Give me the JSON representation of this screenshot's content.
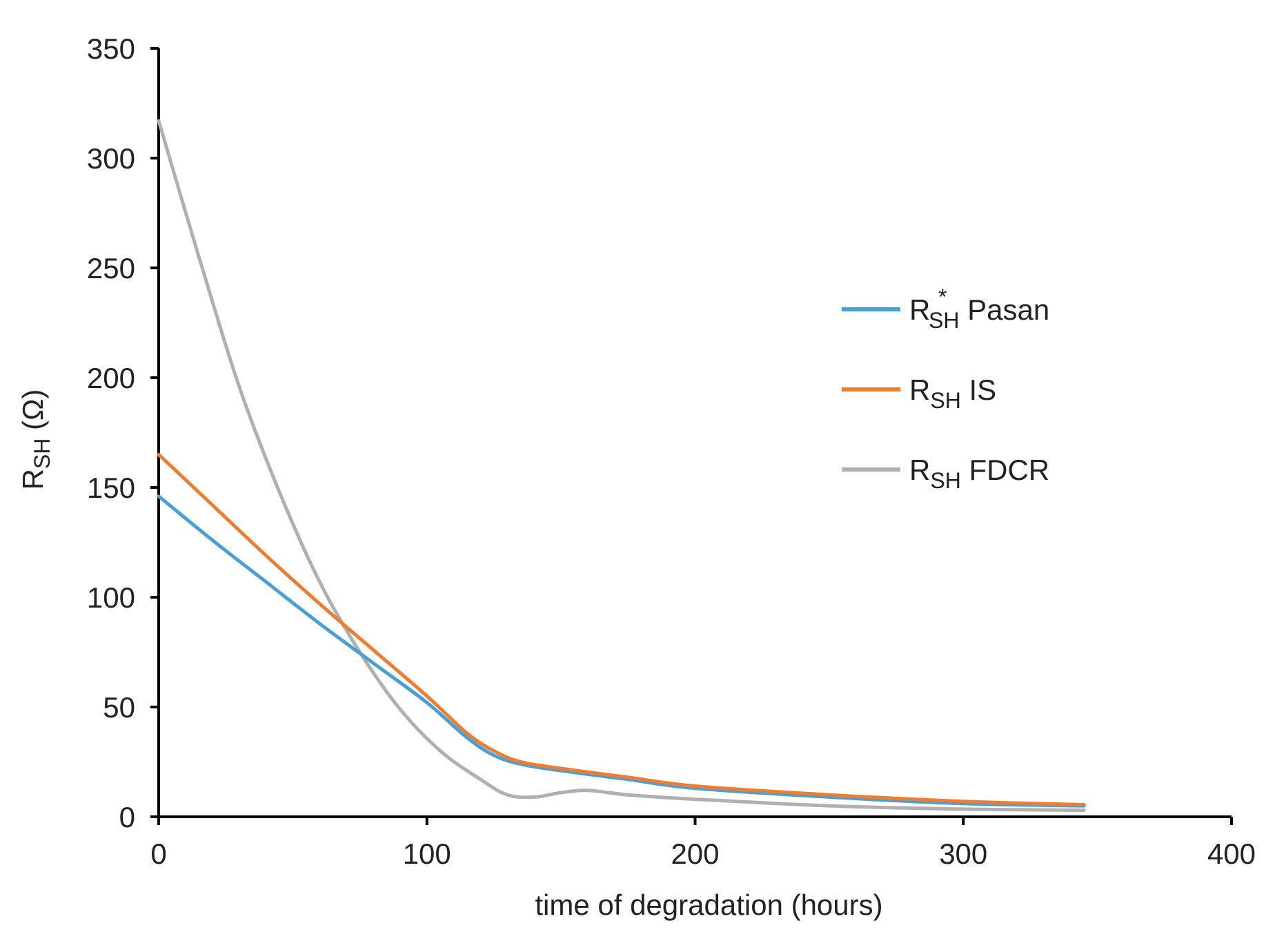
{
  "chart_data": {
    "type": "line",
    "title": "",
    "xlabel": "time of degradation (hours)",
    "ylabel": {
      "base": "R",
      "sub": "SH",
      "unit": " (Ω)"
    },
    "xlim": [
      0,
      400
    ],
    "ylim": [
      0,
      350
    ],
    "x_ticks": [
      0,
      100,
      200,
      300,
      400
    ],
    "y_ticks": [
      0,
      50,
      100,
      150,
      200,
      250,
      300,
      350
    ],
    "grid": false,
    "legend_position": "right",
    "series": [
      {
        "name": "R*SH Pasan",
        "label_base": "R",
        "label_sup": "*",
        "label_sub": "SH",
        "label_rest": " Pasan",
        "color": "#4a9fd5",
        "points": [
          [
            0,
            146
          ],
          [
            20,
            126
          ],
          [
            40,
            107
          ],
          [
            60,
            88
          ],
          [
            80,
            70
          ],
          [
            100,
            52
          ],
          [
            115,
            36
          ],
          [
            125,
            28
          ],
          [
            135,
            24
          ],
          [
            150,
            21
          ],
          [
            175,
            17
          ],
          [
            200,
            13
          ],
          [
            250,
            9
          ],
          [
            300,
            6
          ],
          [
            345,
            5
          ]
        ]
      },
      {
        "name": "RSH IS",
        "label_base": "R",
        "label_sup": "",
        "label_sub": "SH",
        "label_rest": " IS",
        "color": "#ed7d31",
        "points": [
          [
            0,
            165
          ],
          [
            20,
            142
          ],
          [
            40,
            119
          ],
          [
            60,
            97
          ],
          [
            80,
            76
          ],
          [
            100,
            55
          ],
          [
            115,
            38
          ],
          [
            125,
            30
          ],
          [
            135,
            25
          ],
          [
            150,
            22
          ],
          [
            175,
            18
          ],
          [
            200,
            14
          ],
          [
            250,
            10
          ],
          [
            300,
            7
          ],
          [
            345,
            5.5
          ]
        ]
      },
      {
        "name": "RSH FDCR",
        "label_base": "R",
        "label_sup": "",
        "label_sub": "SH",
        "label_rest": " FDCR",
        "color": "#b0b0b0",
        "points": [
          [
            0,
            317
          ],
          [
            15,
            255
          ],
          [
            30,
            196
          ],
          [
            45,
            148
          ],
          [
            60,
            107
          ],
          [
            75,
            75
          ],
          [
            90,
            49
          ],
          [
            105,
            30
          ],
          [
            120,
            17
          ],
          [
            130,
            10
          ],
          [
            140,
            9
          ],
          [
            150,
            11
          ],
          [
            160,
            12
          ],
          [
            175,
            10
          ],
          [
            200,
            8
          ],
          [
            250,
            5
          ],
          [
            300,
            3.5
          ],
          [
            345,
            3
          ]
        ]
      }
    ]
  }
}
